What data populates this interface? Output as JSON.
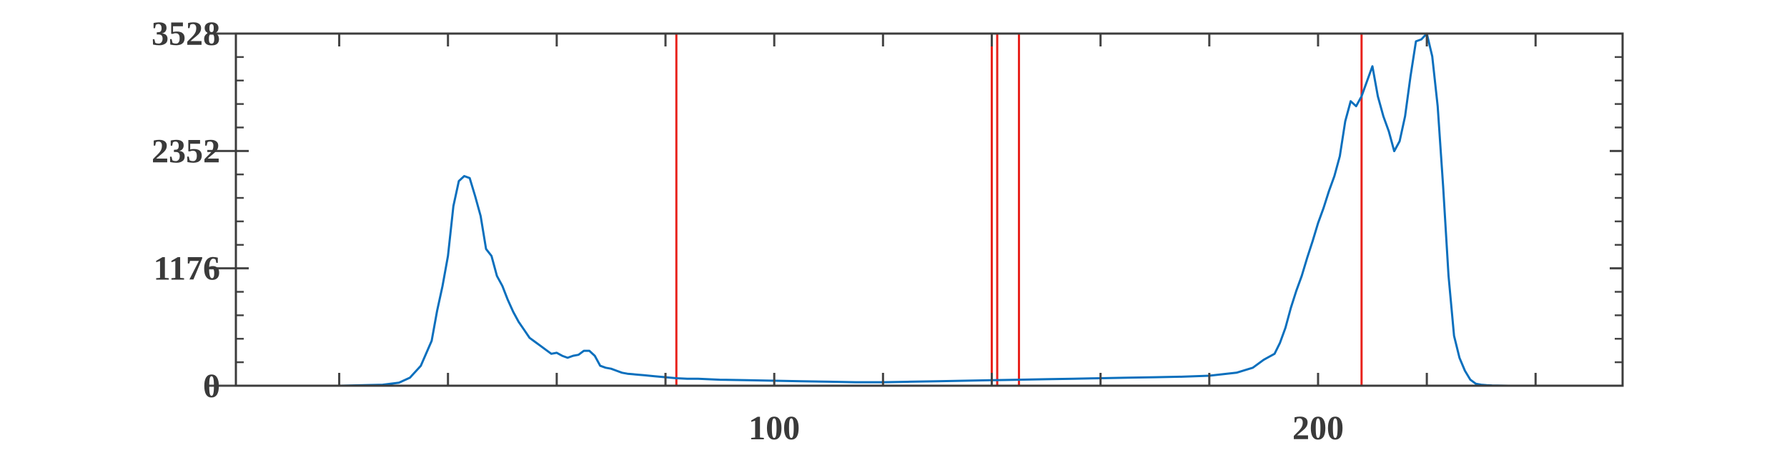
{
  "chart_data": {
    "type": "line",
    "title": "",
    "xlabel": "",
    "ylabel": "",
    "xlim": [
      1,
      256
    ],
    "ylim": [
      0,
      3528
    ],
    "grid": false,
    "legend": "none",
    "y_ticks": [
      0,
      1176,
      2352,
      3528
    ],
    "y_tick_labels": [
      "0",
      "1176",
      "2352",
      "3528"
    ],
    "y_minor_ticks": [
      235.2,
      470.4,
      705.6,
      940.8,
      1411.2,
      1646.4,
      1881.6,
      2116.8,
      2587.2,
      2822.4,
      3057.6,
      3292.8
    ],
    "x_ticks": [
      20,
      40,
      60,
      80,
      100,
      120,
      140,
      160,
      180,
      200,
      220,
      240
    ],
    "x_tick_labels": [
      "",
      "",
      "",
      "",
      "100",
      "",
      "",
      "",
      "",
      "200",
      "",
      ""
    ],
    "series": [
      {
        "color": "#0a6fbd",
        "x": [
          1,
          20,
          28,
          31,
          33,
          35,
          37,
          38,
          39,
          40,
          41,
          42,
          43,
          44,
          45,
          46,
          47,
          48,
          49,
          50,
          51,
          52,
          53,
          54,
          55,
          56,
          57,
          58,
          59,
          60,
          61,
          62,
          63,
          64,
          65,
          66,
          67,
          68,
          69,
          70,
          71,
          72,
          73,
          74,
          75,
          76,
          77,
          78,
          80,
          82,
          84,
          86,
          90,
          95,
          100,
          105,
          110,
          115,
          120,
          125,
          130,
          135,
          140,
          145,
          150,
          155,
          160,
          165,
          170,
          175,
          180,
          185,
          188,
          190,
          192,
          193,
          194,
          195,
          196,
          197,
          198,
          199,
          200,
          201,
          202,
          203,
          204,
          205,
          206,
          207,
          208,
          209,
          210,
          211,
          212,
          213,
          214,
          215,
          216,
          217,
          218,
          219,
          220,
          221,
          222,
          223,
          224,
          225,
          226,
          227,
          228,
          229,
          230,
          231,
          232,
          233,
          234,
          235,
          236,
          240,
          256
        ],
        "y": [
          0,
          0,
          10,
          30,
          80,
          200,
          450,
          750,
          1000,
          1300,
          1800,
          2050,
          2100,
          2080,
          1900,
          1700,
          1370,
          1300,
          1100,
          1000,
          860,
          740,
          640,
          560,
          480,
          440,
          400,
          360,
          320,
          330,
          300,
          280,
          300,
          310,
          350,
          350,
          300,
          200,
          180,
          170,
          150,
          130,
          120,
          115,
          110,
          105,
          100,
          95,
          85,
          75,
          70,
          70,
          60,
          55,
          50,
          45,
          40,
          35,
          35,
          40,
          45,
          50,
          55,
          60,
          65,
          70,
          75,
          80,
          85,
          90,
          100,
          130,
          180,
          260,
          320,
          430,
          580,
          780,
          950,
          1100,
          1280,
          1450,
          1630,
          1780,
          1950,
          2100,
          2300,
          2650,
          2850,
          2800,
          2900,
          3050,
          3200,
          2900,
          2700,
          2550,
          2350,
          2450,
          2700,
          3100,
          3450,
          3470,
          3528,
          3300,
          2800,
          2000,
          1100,
          500,
          280,
          150,
          60,
          20,
          10,
          5,
          3,
          2,
          1,
          0,
          0,
          0,
          0
        ]
      }
    ],
    "vertical_lines": {
      "color": "#e8211b",
      "x": [
        82,
        140,
        141,
        145,
        208
      ]
    }
  }
}
